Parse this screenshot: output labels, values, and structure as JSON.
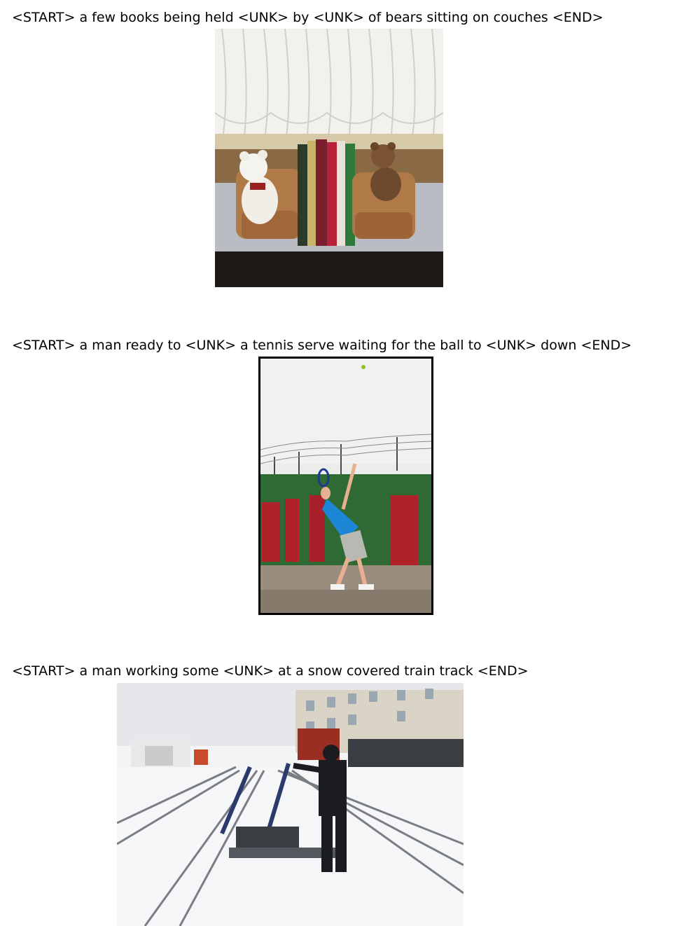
{
  "panels": [
    {
      "caption": "<START> a few books being held <UNK> by <UNK> of bears sitting on couches <END>",
      "photo_subject": "bookends-teddy-bears-on-windowsill"
    },
    {
      "caption": "<START> a man ready to <UNK> a tennis serve waiting for the ball to <UNK> down <END>",
      "photo_subject": "tennis-player-serving"
    },
    {
      "caption": "<START> a man working some <UNK> at a snow covered train track <END>",
      "photo_subject": "worker-at-snowy-railway-lever"
    }
  ]
}
